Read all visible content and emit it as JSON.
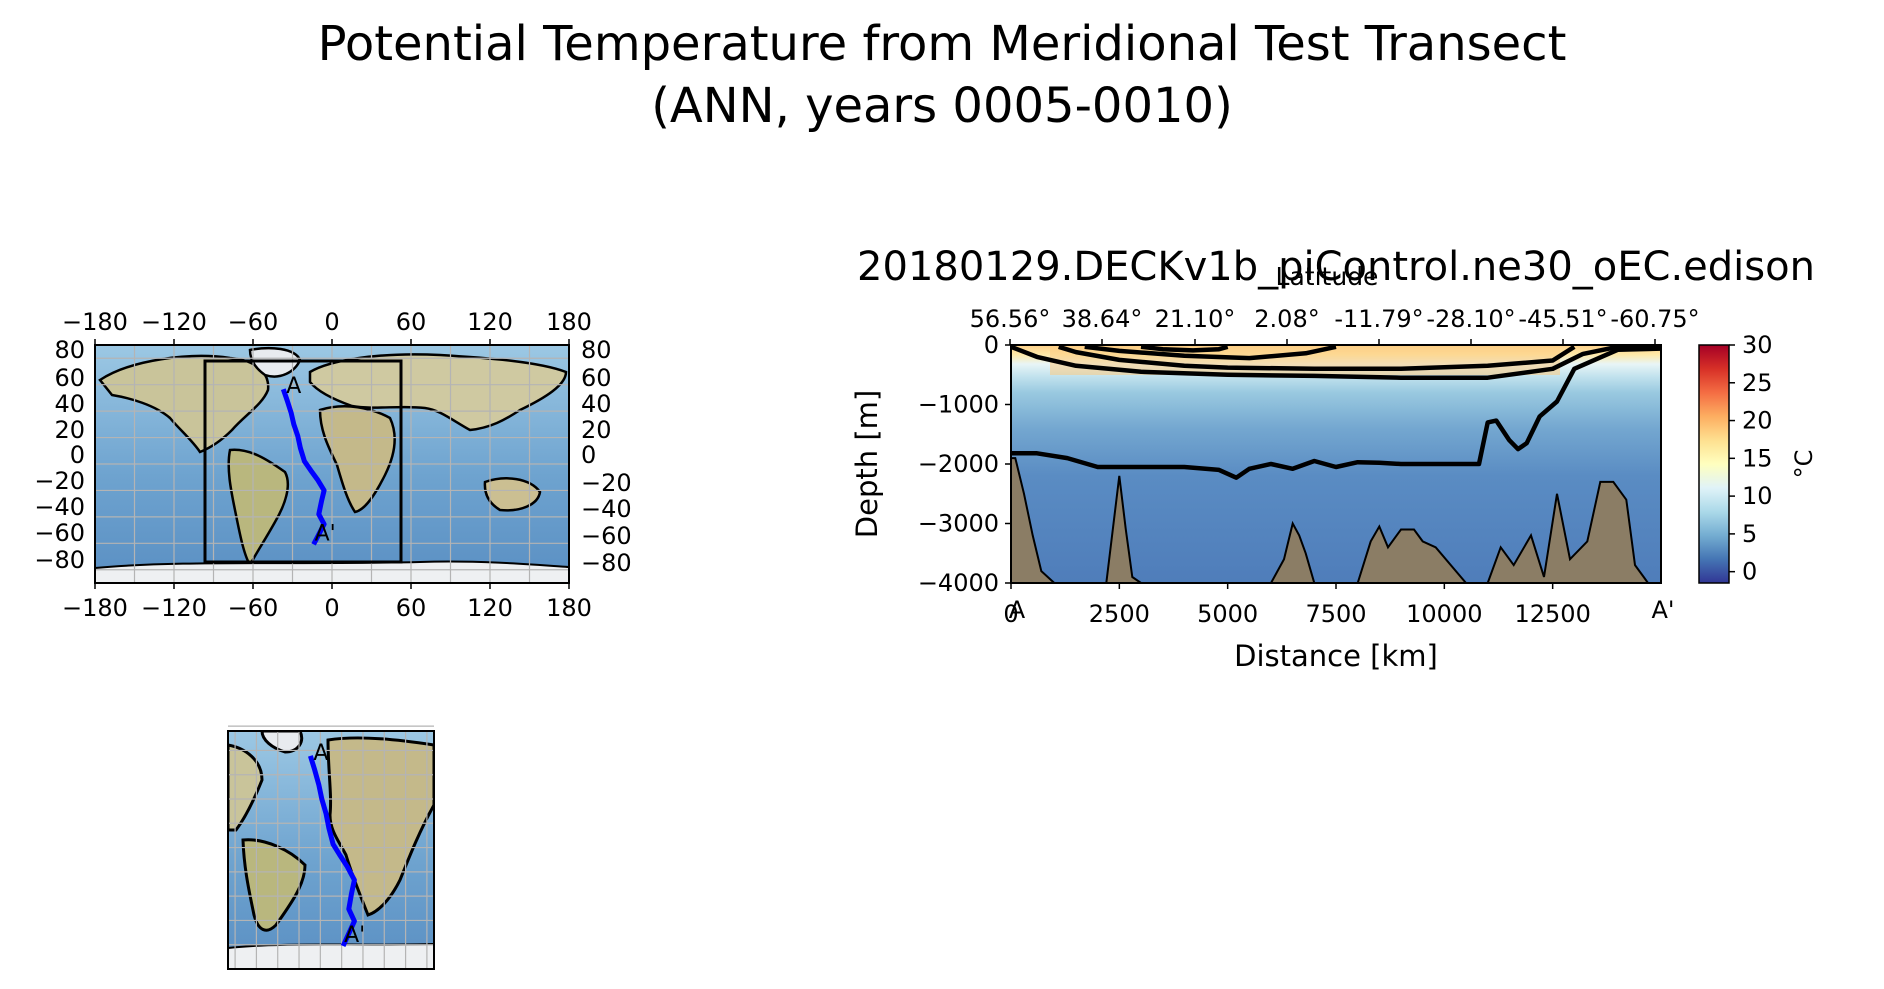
{
  "figure": {
    "suptitle_line1": "Potential Temperature from Meridional Test Transect",
    "suptitle_line2": "(ANN, years 0005-0010)"
  },
  "map_panel": {
    "lon_ticks": [
      "−180",
      "−120",
      "−60",
      "0",
      "60",
      "120",
      "180"
    ],
    "lat_ticks_left": [
      "80",
      "60",
      "40",
      "20",
      "0",
      "−20",
      "−40",
      "−60",
      "−80"
    ],
    "lat_ticks_right": [
      "80",
      "60",
      "40",
      "20",
      "0",
      "−20",
      "−40",
      "−60",
      "−80"
    ],
    "start_marker": "A",
    "end_marker": "A'",
    "transect_color": "#0000ff"
  },
  "section": {
    "title": "20180129.DECKv1b_piControl.ne30_oEC.edison",
    "top_axis_label": "Latitude",
    "xlabel": "Distance [km]",
    "ylabel": "Depth [m]",
    "x_tick_labels": [
      "0",
      "2500",
      "5000",
      "7500",
      "10000",
      "12500"
    ],
    "x_end_left": "A",
    "x_end_right": "A'",
    "y_tick_labels": [
      "0",
      "−1000",
      "−2000",
      "−3000",
      "−4000"
    ],
    "lat_tick_labels": [
      "56.56°",
      "38.64°",
      "21.10°",
      "2.08°",
      "-11.79°",
      "-28.10°",
      "-45.51°",
      "-60.75°"
    ],
    "colorbar_label": "°C",
    "colorbar_ticks": [
      "30",
      "25",
      "20",
      "15",
      "10",
      "5",
      "0"
    ],
    "colormap": [
      "#313695",
      "#4575b4",
      "#74add1",
      "#abd9e9",
      "#e0f3f8",
      "#ffffbf",
      "#fee090",
      "#fdae61",
      "#f46d43",
      "#d73027",
      "#a50026"
    ],
    "bathymetry_color": "#8b7d65"
  },
  "chart_data": {
    "type": "heatmap",
    "title": "20180129.DECKv1b_piControl.ne30_oEC.edison",
    "xlabel": "Distance [km]",
    "ylabel": "Depth [m]",
    "xlim": [
      0,
      15000
    ],
    "ylim": [
      -4000,
      0
    ],
    "colorbar": {
      "label": "°C",
      "range": [
        -1.5,
        30
      ]
    },
    "contour_levels_degC": [
      2,
      5,
      10,
      15,
      20
    ],
    "contours": [
      {
        "level": 2,
        "x": [
          0,
          600,
          1300,
          2000,
          3000,
          4000,
          4800,
          5200,
          5500,
          6000,
          6500,
          7000,
          7500,
          8000,
          8500,
          9000,
          9500,
          10000,
          10800,
          11000,
          11200,
          11500,
          11700,
          11900,
          12200,
          12600,
          13000,
          14000,
          15000
        ],
        "y": [
          -1820,
          -1820,
          -1900,
          -2050,
          -2050,
          -2050,
          -2100,
          -2230,
          -2080,
          -2000,
          -2080,
          -1950,
          -2050,
          -1970,
          -1980,
          -2000,
          -2000,
          -2000,
          -2000,
          -1300,
          -1270,
          -1600,
          -1750,
          -1650,
          -1200,
          -950,
          -400,
          -80,
          -60
        ]
      },
      {
        "level": 5,
        "x": [
          0,
          600,
          1500,
          3000,
          5000,
          7000,
          9000,
          11000,
          12500,
          13200,
          14000,
          15000
        ],
        "y": [
          -30,
          -200,
          -350,
          -450,
          -500,
          -520,
          -550,
          -550,
          -400,
          -150,
          -30,
          -20
        ]
      },
      {
        "level": 10,
        "x": [
          1100,
          1500,
          2500,
          4000,
          5000,
          7000,
          9000,
          11000,
          12500,
          13000
        ],
        "y": [
          -30,
          -120,
          -250,
          -350,
          -380,
          -400,
          -400,
          -350,
          -260,
          -30
        ]
      },
      {
        "level": 15,
        "x": [
          1700,
          2500,
          4000,
          5500,
          6800,
          7500
        ],
        "y": [
          -30,
          -100,
          -180,
          -220,
          -140,
          -30
        ]
      },
      {
        "level": 20,
        "x": [
          3000,
          3500,
          4200,
          4800,
          5000
        ],
        "y": [
          -30,
          -70,
          -90,
          -70,
          -30
        ]
      }
    ],
    "bathymetry_top_depth": {
      "x": [
        0,
        100,
        300,
        500,
        700,
        1000,
        2200,
        2350,
        2500,
        2650,
        2800,
        3000,
        6000,
        6300,
        6500,
        6650,
        6800,
        7000,
        8000,
        8300,
        8500,
        8700,
        9000,
        9300,
        9500,
        9800,
        10500,
        11000,
        11300,
        11600,
        12000,
        12300,
        12600,
        12900,
        13300,
        13600,
        13900,
        14200,
        14400,
        14600,
        14700,
        15000
      ],
      "y": [
        -1900,
        -1900,
        -2500,
        -3200,
        -3800,
        -4000,
        -4000,
        -3100,
        -2200,
        -3100,
        -3900,
        -4000,
        -4000,
        -3600,
        -3000,
        -3200,
        -3500,
        -4000,
        -4000,
        -3300,
        -3050,
        -3400,
        -3100,
        -3100,
        -3300,
        -3400,
        -4000,
        -4000,
        -3400,
        -3700,
        -3200,
        -3900,
        -2500,
        -3600,
        -3300,
        -2300,
        -2300,
        -2600,
        -3700,
        -3900,
        -4000,
        -4000
      ]
    },
    "transect_path_lonlat": {
      "lon": [
        -37,
        -34,
        -31,
        -29,
        -26,
        -24,
        -21,
        -16,
        -11,
        -6,
        -8,
        -10,
        -6,
        -14
      ],
      "lat": [
        56.6,
        48,
        38.6,
        30,
        21.1,
        12,
        2.1,
        -5,
        -11.8,
        -20,
        -28.1,
        -38,
        -45.5,
        -60.8
      ]
    }
  }
}
